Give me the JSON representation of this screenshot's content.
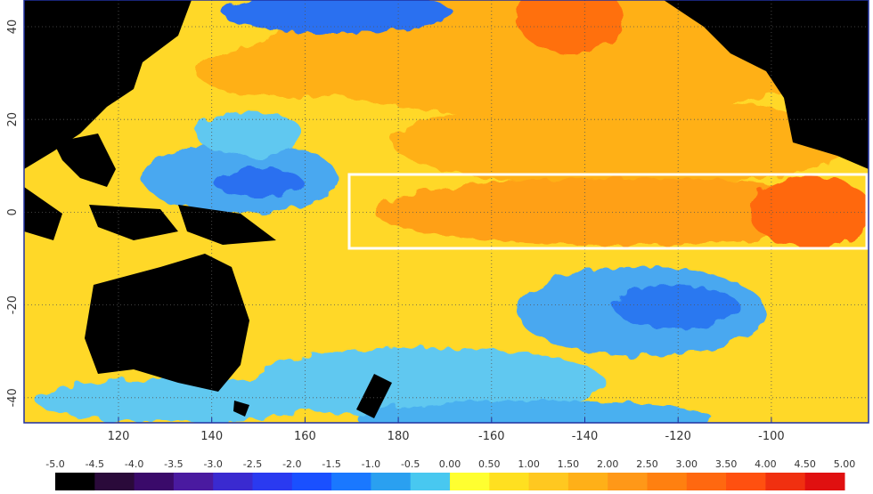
{
  "map": {
    "lat_labels": [
      "40",
      "20",
      "0",
      "-20",
      "-40"
    ],
    "lon_labels": [
      "120",
      "140",
      "160",
      "180",
      "-160",
      "-140",
      "-120",
      "-100"
    ],
    "colorbar": {
      "labels": [
        "-5.0",
        "-4.5",
        "-4.0",
        "-3.5",
        "-3.0",
        "-2.5",
        "-2.0",
        "-1.5",
        "-1.0",
        "-0.5",
        "0.00",
        "0.50",
        "1.00",
        "1.50",
        "2.00",
        "2.50",
        "3.00",
        "3.50",
        "4.00",
        "4.50",
        "5.00"
      ],
      "colors": [
        "#000000",
        "#2a0a3a",
        "#3a0a6a",
        "#4a1aa0",
        "#3a2ad0",
        "#2a3af0",
        "#1a50ff",
        "#1a78ff",
        "#2aa0f0",
        "#48c8f0",
        "#ffff30",
        "#ffe020",
        "#ffc820",
        "#ffb018",
        "#ff9818",
        "#ff8010",
        "#ff6810",
        "#ff5010",
        "#f03010",
        "#e01010"
      ]
    }
  }
}
